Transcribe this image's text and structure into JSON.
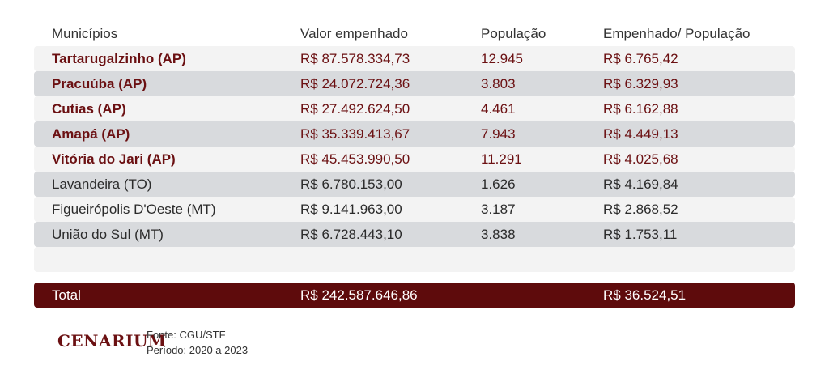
{
  "table": {
    "headers": [
      "Municípios",
      "Valor empenhado",
      "População",
      "Empenhado/ População"
    ],
    "rows": [
      [
        "Tartarugalzinho (AP)",
        "R$ 87.578.334,73",
        "12.945",
        "R$ 6.765,42"
      ],
      [
        "Pracuúba (AP)",
        "R$ 24.072.724,36",
        "3.803",
        "R$ 6.329,93"
      ],
      [
        "Cutias (AP)",
        "R$ 27.492.624,50",
        "4.461",
        "R$ 6.162,88"
      ],
      [
        "Amapá (AP)",
        "R$ 35.339.413,67",
        "7.943",
        "R$ 4.449,13"
      ],
      [
        "Vitória do Jari (AP)",
        "R$ 45.453.990,50",
        "11.291",
        "R$ 4.025,68"
      ],
      [
        "Lavandeira (TO)",
        "R$ 6.780.153,00",
        "1.626",
        "R$ 4.169,84"
      ],
      [
        "Figueirópolis D'Oeste (MT)",
        "R$ 9.141.963,00",
        "3.187",
        "R$ 2.868,52"
      ],
      [
        "União do Sul (MT)",
        "R$ 6.728.443,10",
        "3.838",
        "R$ 1.753,11"
      ]
    ],
    "total": {
      "label": "Total",
      "valor": "R$ 242.587.646,86",
      "per_capita": "R$ 36.524,51"
    }
  },
  "footer": {
    "brand": "Cenarium",
    "source": "Fonte: CGU/STF",
    "period": "Período: 2020 a 2023"
  },
  "colors": {
    "accent": "#6b1012",
    "total_bg": "#5e0b0c",
    "row_light": "#f3f3f3",
    "row_dark": "#d8dadd"
  }
}
